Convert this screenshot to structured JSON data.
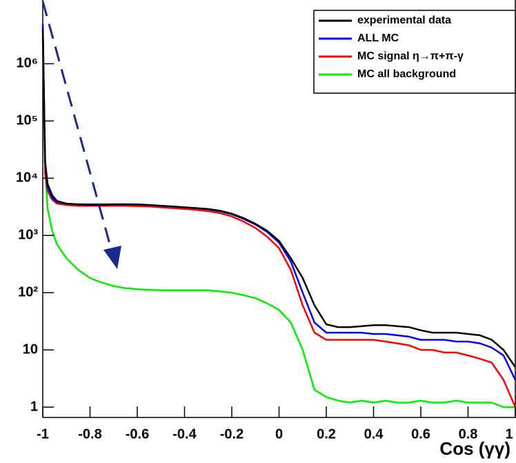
{
  "chart_data": {
    "type": "line",
    "x_label": "Cos (γγ)",
    "x": [
      -1,
      -0.99,
      -0.98,
      -0.96,
      -0.94,
      -0.9,
      -0.85,
      -0.8,
      -0.75,
      -0.7,
      -0.65,
      -0.6,
      -0.55,
      -0.5,
      -0.45,
      -0.4,
      -0.35,
      -0.3,
      -0.25,
      -0.2,
      -0.15,
      -0.1,
      -0.05,
      0,
      0.05,
      0.1,
      0.15,
      0.2,
      0.25,
      0.3,
      0.35,
      0.4,
      0.45,
      0.5,
      0.55,
      0.6,
      0.65,
      0.7,
      0.75,
      0.8,
      0.85,
      0.9,
      0.95,
      1
    ],
    "series": [
      {
        "name": "experimental data",
        "color": "#000000",
        "values": [
          4000000,
          20000,
          8000,
          5000,
          4000,
          3600,
          3500,
          3400,
          3400,
          3500,
          3500,
          3500,
          3400,
          3300,
          3200,
          3100,
          3000,
          2900,
          2700,
          2400,
          2000,
          1600,
          1200,
          800,
          400,
          180,
          60,
          28,
          25,
          25,
          26,
          27,
          27,
          26,
          25,
          22,
          20,
          20,
          20,
          19,
          18,
          15,
          10,
          5
        ]
      },
      {
        "name": "ALL MC",
        "color": "#0000ff",
        "values": [
          5000000,
          18000,
          7000,
          4500,
          3800,
          3600,
          3500,
          3500,
          3500,
          3500,
          3500,
          3450,
          3400,
          3300,
          3200,
          3100,
          3000,
          2850,
          2650,
          2350,
          1950,
          1550,
          1150,
          750,
          350,
          100,
          30,
          20,
          20,
          20,
          20,
          19,
          19,
          18,
          17,
          15,
          15,
          15,
          14,
          14,
          13,
          11,
          8,
          3
        ]
      },
      {
        "name": "MC signal η→π+π-γ",
        "color": "#ff0000",
        "values": [
          3000000,
          12000,
          6000,
          4200,
          3600,
          3400,
          3300,
          3300,
          3300,
          3300,
          3300,
          3250,
          3200,
          3100,
          3000,
          2900,
          2800,
          2650,
          2450,
          2150,
          1750,
          1350,
          950,
          600,
          250,
          60,
          20,
          15,
          15,
          15,
          15,
          15,
          14,
          13,
          12,
          10,
          10,
          9,
          9,
          8,
          7,
          6,
          3,
          1
        ]
      },
      {
        "name": "MC all background",
        "color": "#00ee00",
        "values": [
          5000000,
          15000,
          3000,
          1200,
          700,
          400,
          250,
          180,
          150,
          130,
          120,
          115,
          112,
          110,
          110,
          110,
          110,
          110,
          105,
          100,
          90,
          80,
          65,
          50,
          30,
          10,
          2,
          1.5,
          1.3,
          1.2,
          1.3,
          1.2,
          1.3,
          1.2,
          1.2,
          1.3,
          1.2,
          1.2,
          1.3,
          1.2,
          1.2,
          1.2,
          1,
          1
        ]
      }
    ],
    "xlim": [
      -1,
      1
    ],
    "xticks": [
      -1,
      -0.8,
      -0.6,
      -0.4,
      -0.2,
      0,
      0.2,
      0.4,
      0.6,
      0.8,
      1
    ],
    "ylim": [
      0.66,
      13000000
    ],
    "yticks": [
      1,
      10,
      {
        "value": 100,
        "label": "10²"
      },
      {
        "value": 1000,
        "label": "10³"
      },
      {
        "value": 10000,
        "label": "10⁴"
      },
      {
        "value": 100000,
        "label": "10⁵"
      },
      {
        "value": 1000000,
        "label": "10⁶"
      }
    ],
    "log_y": true,
    "grid": false,
    "legend": "upper right"
  }
}
